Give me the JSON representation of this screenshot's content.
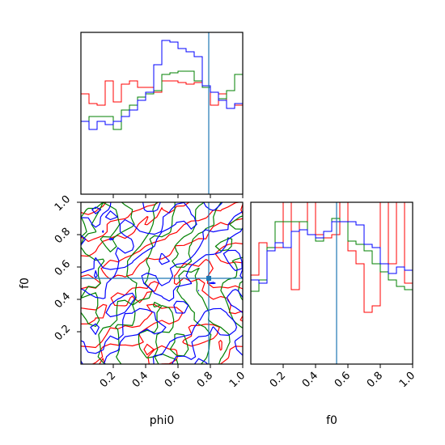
{
  "chart_data": {
    "type": "corner",
    "parameters": [
      "phi0",
      "f0"
    ],
    "truth": {
      "phi0": 0.79,
      "f0": 0.53
    },
    "series_colors": {
      "red": "#ff0000",
      "green": "#008000",
      "blue": "#0000ff"
    },
    "truth_color": "#1f77b4",
    "axes": {
      "phi0": {
        "range": [
          0.0,
          1.0
        ],
        "ticks": [
          0.2,
          0.4,
          0.6,
          0.8,
          1.0
        ],
        "tick_labels": [
          "0.2",
          "0.4",
          "0.6",
          "0.8",
          "1.0"
        ]
      },
      "f0": {
        "range": [
          0.0,
          1.0
        ],
        "ticks": [
          0.2,
          0.4,
          0.6,
          0.8,
          1.0
        ],
        "tick_labels": [
          "0.2",
          "0.4",
          "0.6",
          "0.8",
          "1.0"
        ]
      }
    },
    "labels": {
      "xlabel_left": "phi0",
      "xlabel_right": "f0",
      "ylabel_bottom": "f0"
    },
    "hist_phi0": {
      "bin_edges": [
        0.0,
        0.05,
        0.1,
        0.15,
        0.2,
        0.25,
        0.3,
        0.35,
        0.4,
        0.45,
        0.5,
        0.55,
        0.6,
        0.65,
        0.7,
        0.75,
        0.8,
        0.85,
        0.9,
        0.95,
        1.0
      ],
      "red": [
        0.62,
        0.56,
        0.55,
        0.7,
        0.57,
        0.68,
        0.7,
        0.66,
        0.66,
        0.63,
        0.7,
        0.7,
        0.69,
        0.68,
        0.69,
        0.66,
        0.55,
        0.62,
        0.53,
        0.55
      ],
      "green": [
        0.45,
        0.48,
        0.48,
        0.48,
        0.4,
        0.52,
        0.55,
        0.6,
        0.62,
        0.64,
        0.74,
        0.75,
        0.76,
        0.76,
        0.7,
        0.66,
        0.63,
        0.59,
        0.64,
        0.74
      ],
      "blue": [
        0.45,
        0.4,
        0.45,
        0.43,
        0.45,
        0.48,
        0.52,
        0.58,
        0.63,
        0.8,
        0.95,
        0.94,
        0.9,
        0.88,
        0.85,
        0.67,
        0.63,
        0.58,
        0.53,
        0.56
      ]
    },
    "hist_f0": {
      "bin_edges": [
        0.0,
        0.05,
        0.1,
        0.15,
        0.2,
        0.25,
        0.3,
        0.35,
        0.4,
        0.45,
        0.5,
        0.55,
        0.6,
        0.65,
        0.7,
        0.75,
        0.8,
        0.85,
        0.9,
        0.95,
        1.0
      ],
      "red": [
        0.55,
        0.75,
        0.7,
        0.72,
        1.0,
        0.46,
        0.88,
        1.0,
        0.8,
        0.78,
        0.8,
        1.0,
        0.7,
        0.62,
        0.32,
        0.36,
        1.0,
        0.62,
        1.0,
        0.5
      ],
      "green": [
        0.45,
        0.52,
        0.72,
        0.88,
        0.88,
        0.88,
        0.88,
        0.8,
        0.76,
        0.82,
        0.9,
        0.88,
        0.76,
        0.74,
        0.7,
        0.62,
        0.57,
        0.52,
        0.48,
        0.46
      ],
      "blue": [
        0.52,
        0.5,
        0.7,
        0.75,
        0.72,
        0.82,
        0.83,
        0.8,
        0.78,
        0.82,
        0.88,
        0.88,
        0.88,
        0.86,
        0.74,
        0.72,
        0.62,
        0.56,
        0.6,
        0.58
      ]
    }
  }
}
